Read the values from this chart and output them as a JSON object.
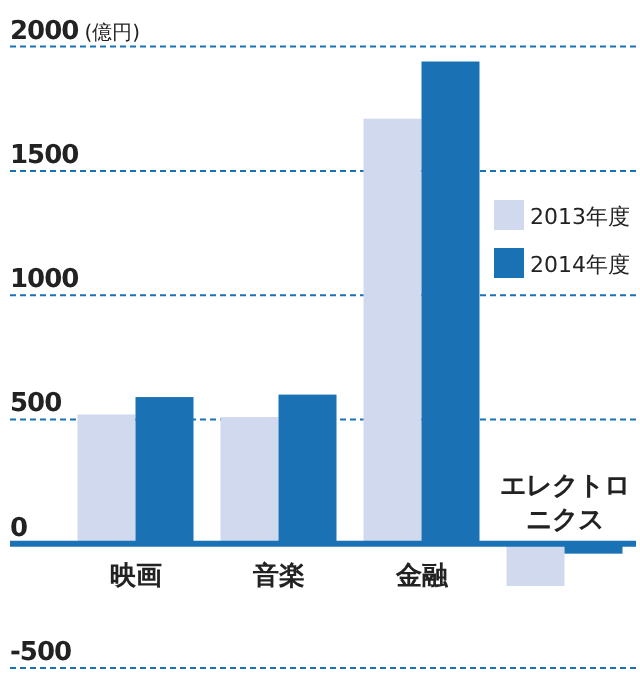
{
  "chart_data": {
    "type": "bar",
    "ylabel": "(億円)",
    "categories": [
      "映画",
      "音楽",
      "金融",
      "エレクトロニクス"
    ],
    "series": [
      {
        "name": "2013年度",
        "color": "#d0d9ee",
        "values": [
          520,
          510,
          1710,
          -170
        ]
      },
      {
        "name": "2014年度",
        "color": "#1a72b5",
        "values": [
          590,
          600,
          1940,
          -40
        ]
      }
    ],
    "ylim": [
      -500,
      2000
    ],
    "yticks": [
      -500,
      0,
      500,
      1000,
      1500,
      2000
    ],
    "grid": "y",
    "legend": "right"
  }
}
